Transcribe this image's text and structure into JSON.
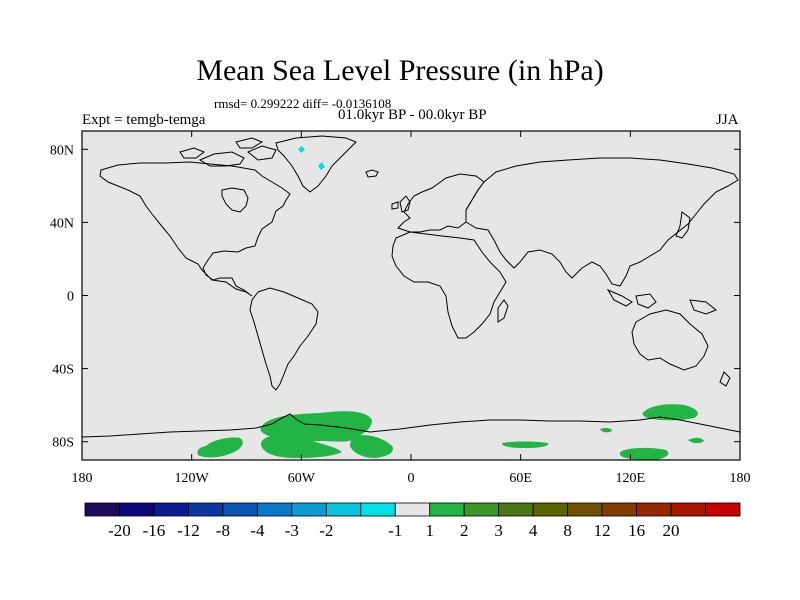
{
  "title": "Mean Sea Level Pressure (in hPa)",
  "stats_line": "rmsd= 0.299222 diff= -0.0136108",
  "period_line": "01.0kyr BP - 00.0kyr BP",
  "left_label": "Expt = temgb-temga",
  "right_label": "JJA",
  "map": {
    "projection": "cylindrical equidistant",
    "lon_range": [
      -180,
      180
    ],
    "lat_range": [
      -90,
      90
    ],
    "ocean_land_fill": "#e6e6e6",
    "coastline_color": "#000000",
    "x_ticks": [
      {
        "lon": -180,
        "label": "180"
      },
      {
        "lon": -120,
        "label": "120W"
      },
      {
        "lon": -60,
        "label": "60W"
      },
      {
        "lon": 0,
        "label": "0"
      },
      {
        "lon": 60,
        "label": "60E"
      },
      {
        "lon": 120,
        "label": "120E"
      },
      {
        "lon": 180,
        "label": "180"
      }
    ],
    "y_ticks": [
      {
        "lat": 80,
        "label": "80N"
      },
      {
        "lat": 40,
        "label": "40N"
      },
      {
        "lat": 0,
        "label": "0"
      },
      {
        "lat": -40,
        "label": "40S"
      },
      {
        "lat": -80,
        "label": "80S"
      }
    ]
  },
  "colorbar": {
    "colors": [
      "#1e0a5a",
      "#0a0a78",
      "#0a1a90",
      "#0a37a0",
      "#0a55b4",
      "#0a78c8",
      "#0a9bd2",
      "#08c3dc",
      "#00e1e6",
      "#e6e6e6",
      "#23b446",
      "#3c9628",
      "#4b7814",
      "#5a6400",
      "#6e5000",
      "#823c00",
      "#962800",
      "#aa1400",
      "#c80000"
    ],
    "labels": [
      "-20",
      "-16",
      "-12",
      "-8",
      "-4",
      "-3",
      "-2",
      "-1",
      "1",
      "2",
      "3",
      "4",
      "8",
      "12",
      "16",
      "20"
    ]
  }
}
